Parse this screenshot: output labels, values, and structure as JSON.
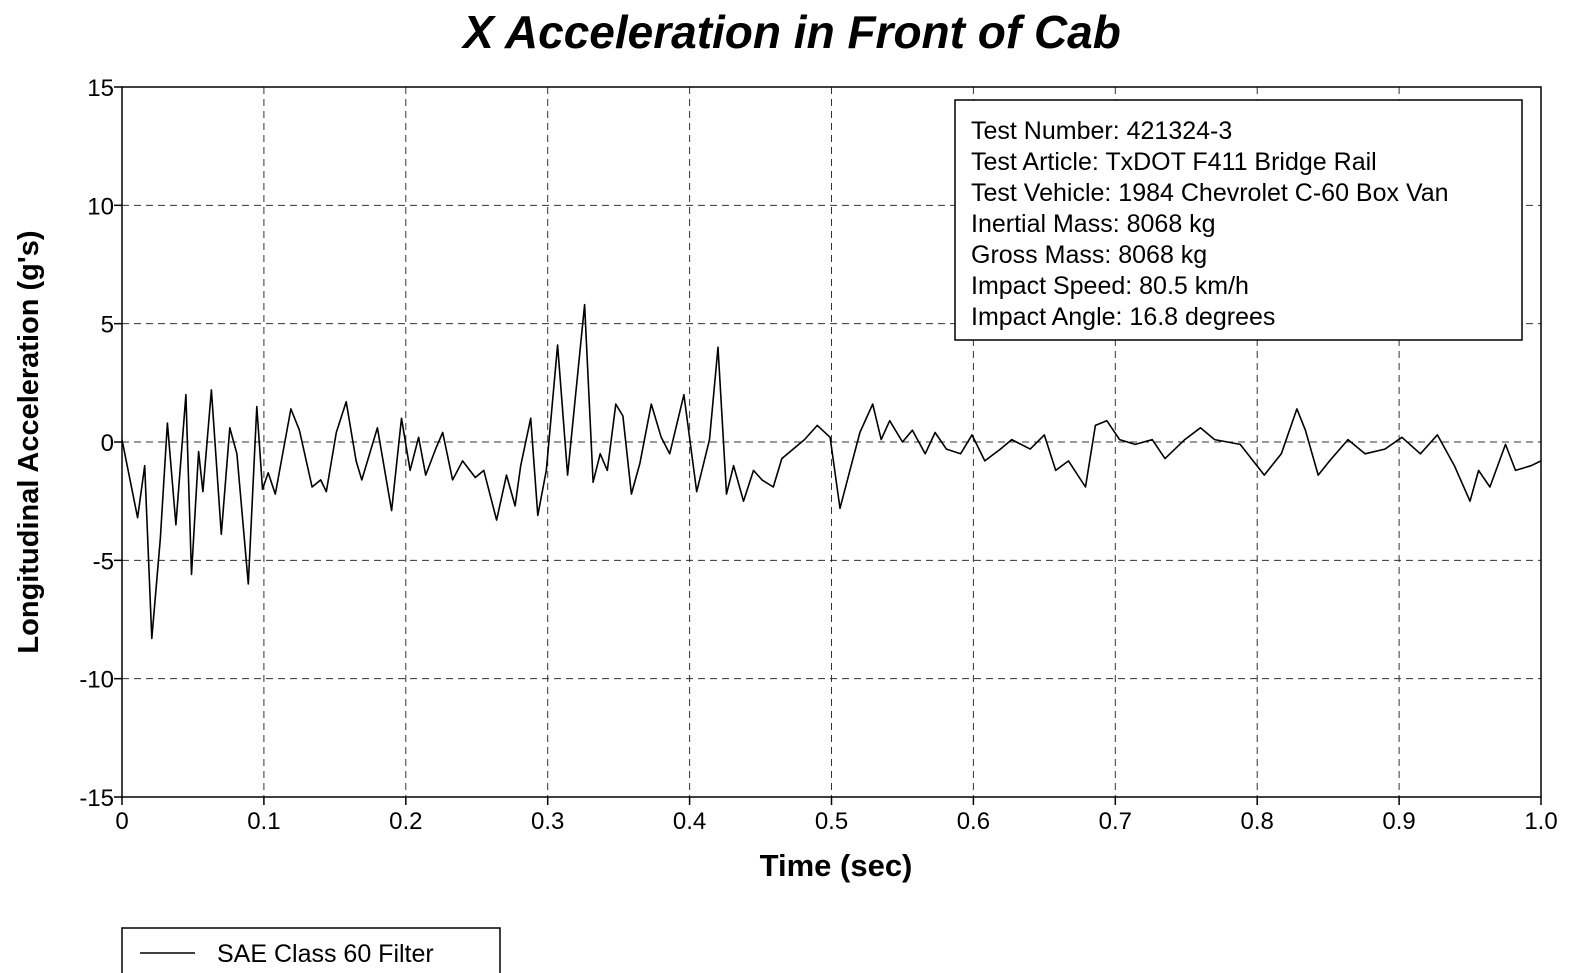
{
  "chart_data": {
    "type": "line",
    "title": "X Acceleration in Front of Cab",
    "x_label": "Time (sec)",
    "y_label": "Longitudinal Acceleration (g's)",
    "xlim": [
      0,
      1
    ],
    "ylim": [
      -15,
      15
    ],
    "xticks": [
      0,
      0.1,
      0.2,
      0.3,
      0.4,
      0.5,
      0.6,
      0.7,
      0.8,
      0.9,
      {
        "value": 1,
        "label": "1.0"
      }
    ],
    "yticks": [
      -15,
      -10,
      -5,
      0,
      5,
      10,
      15
    ],
    "grid": true,
    "annotations": [
      "Test Number: 421324-3",
      "Test Article: TxDOT F411 Bridge Rail",
      "Test Vehicle: 1984 Chevrolet C-60 Box Van",
      "Inertial Mass: 8068 kg",
      "Gross Mass: 8068 kg",
      "Impact Speed: 80.5 km/h",
      "Impact Angle: 16.8 degrees"
    ],
    "legend_position": "bottom-left",
    "x": [
      0,
      0.006,
      0.011,
      0.016,
      0.021,
      0.027,
      0.032,
      0.038,
      0.045,
      0.049,
      0.054,
      0.057,
      0.063,
      0.07,
      0.076,
      0.081,
      0.089,
      0.095,
      0.099,
      0.103,
      0.108,
      0.119,
      0.125,
      0.134,
      0.14,
      0.144,
      0.151,
      0.158,
      0.165,
      0.169,
      0.18,
      0.19,
      0.197,
      0.203,
      0.209,
      0.214,
      0.221,
      0.226,
      0.233,
      0.24,
      0.249,
      0.255,
      0.264,
      0.271,
      0.277,
      0.281,
      0.288,
      0.293,
      0.299,
      0.307,
      0.314,
      0.326,
      0.332,
      0.337,
      0.342,
      0.348,
      0.353,
      0.359,
      0.365,
      0.373,
      0.38,
      0.386,
      0.396,
      0.405,
      0.414,
      0.42,
      0.426,
      0.431,
      0.438,
      0.445,
      0.451,
      0.459,
      0.465,
      0.471,
      0.481,
      0.49,
      0.499,
      0.506,
      0.513,
      0.52,
      0.529,
      0.535,
      0.541,
      0.55,
      0.557,
      0.566,
      0.573,
      0.581,
      0.591,
      0.599,
      0.608,
      0.619,
      0.627,
      0.64,
      0.65,
      0.658,
      0.667,
      0.679,
      0.686,
      0.694,
      0.703,
      0.714,
      0.726,
      0.735,
      0.749,
      0.76,
      0.77,
      0.788,
      0.805,
      0.817,
      0.828,
      0.834,
      0.843,
      0.851,
      0.864,
      0.876,
      0.89,
      0.902,
      0.915,
      0.927,
      0.939,
      0.95,
      0.956,
      0.964,
      0.975,
      0.982,
      0.993,
      1.0
    ],
    "series": [
      {
        "name": "SAE Class 60 Filter",
        "color": "#000000",
        "values": [
          0.1,
          -1.7,
          -3.2,
          -1,
          -8.3,
          -4.1,
          0.8,
          -3.5,
          2.0,
          -5.6,
          -0.4,
          -2.1,
          2.2,
          -3.9,
          0.6,
          -0.5,
          -6.0,
          1.5,
          -2.0,
          -1.3,
          -2.2,
          1.4,
          0.5,
          -1.9,
          -1.6,
          -2.1,
          0.4,
          1.7,
          -0.8,
          -1.6,
          0.6,
          -2.9,
          1.0,
          -1.2,
          0.2,
          -1.4,
          -0.3,
          0.4,
          -1.6,
          -0.8,
          -1.5,
          -1.2,
          -3.3,
          -1.4,
          -2.7,
          -1.0,
          1.0,
          -3.1,
          -1.2,
          4.1,
          -1.4,
          5.8,
          -1.7,
          -0.5,
          -1.2,
          1.6,
          1.1,
          -2.2,
          -0.9,
          1.6,
          0.2,
          -0.5,
          2.0,
          -2.1,
          0.1,
          4.0,
          -2.2,
          -1.0,
          -2.5,
          -1.2,
          -1.6,
          -1.9,
          -0.7,
          -0.4,
          0.1,
          0.7,
          0.2,
          -2.8,
          -1.2,
          0.4,
          1.6,
          0.1,
          0.9,
          0.0,
          0.5,
          -0.5,
          0.4,
          -0.3,
          -0.5,
          0.3,
          -0.8,
          -0.3,
          0.1,
          -0.3,
          0.3,
          -1.2,
          -0.8,
          -1.9,
          0.7,
          0.9,
          0.1,
          -0.1,
          0.1,
          -0.7,
          0.1,
          0.6,
          0.1,
          -0.1,
          -1.4,
          -0.5,
          1.4,
          0.5,
          -1.4,
          -0.8,
          0.1,
          -0.5,
          -0.3,
          0.2,
          -0.5,
          0.3,
          -1.0,
          -2.5,
          -1.2,
          -1.9,
          -0.1,
          -1.2,
          -1.0,
          -0.8
        ]
      }
    ]
  }
}
